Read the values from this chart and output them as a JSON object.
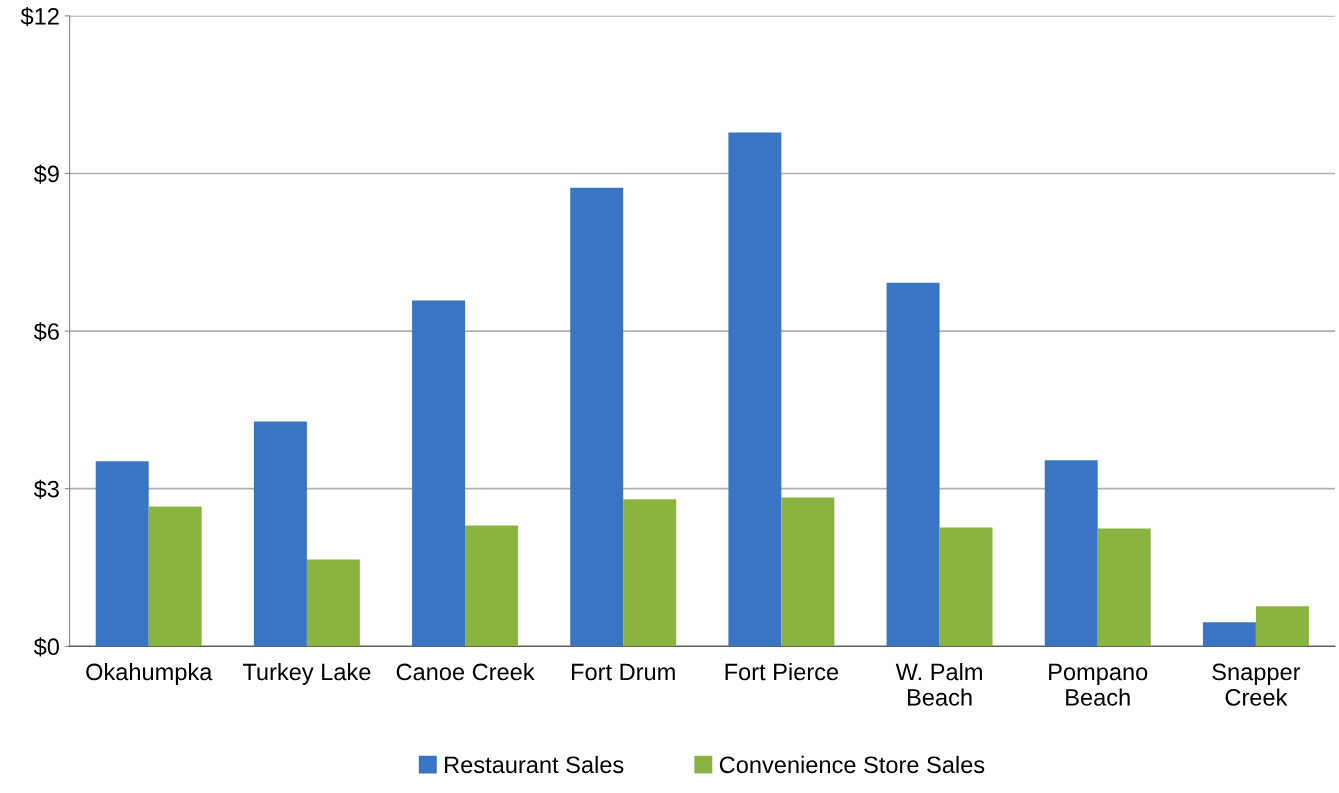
{
  "chart_data": {
    "type": "bar",
    "categories": [
      "Okahumpka",
      "Turkey Lake",
      "Canoe Creek",
      "Fort Drum",
      "Fort Pierce",
      "W. Palm\nBeach",
      "Pompano\nBeach",
      "Snapper\nCreek"
    ],
    "series": [
      {
        "name": "Restaurant Sales",
        "color": "#3a75c4",
        "values": [
          3.52,
          4.28,
          6.58,
          8.73,
          9.78,
          6.92,
          3.54,
          0.46
        ]
      },
      {
        "name": "Convenience Store Sales",
        "color": "#8ab440",
        "values": [
          2.66,
          1.65,
          2.3,
          2.8,
          2.83,
          2.26,
          2.24,
          0.76
        ]
      }
    ],
    "ylim": [
      0,
      12
    ],
    "yticks": [
      {
        "value": 0,
        "label": "$0"
      },
      {
        "value": 3,
        "label": "$3"
      },
      {
        "value": 6,
        "label": "$6"
      },
      {
        "value": 9,
        "label": "$9"
      },
      {
        "value": 12,
        "label": "$12"
      }
    ],
    "grid": "y",
    "legend": "bottom"
  }
}
